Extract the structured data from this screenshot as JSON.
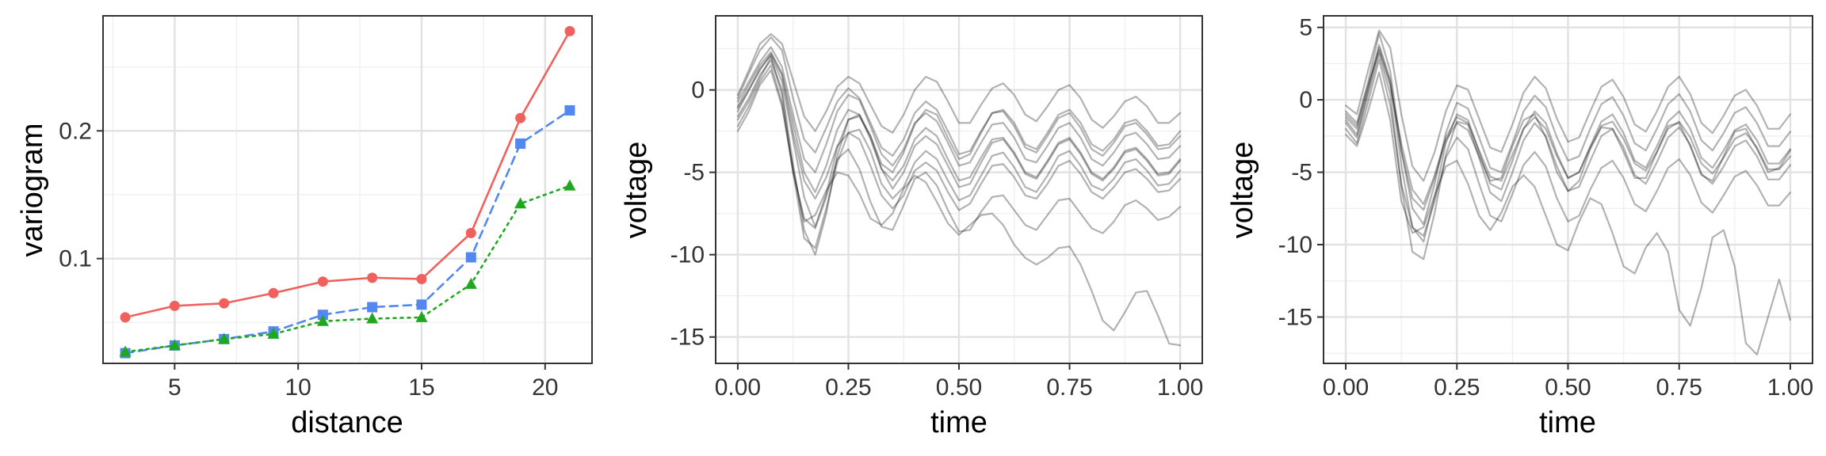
{
  "chart_data": [
    {
      "type": "line",
      "xlabel": "distance",
      "ylabel": "variogram",
      "xlim": [
        2.1,
        21.9
      ],
      "ylim": [
        0.018,
        0.29
      ],
      "xticks": [
        5,
        10,
        15,
        20
      ],
      "yticks": [
        0.1,
        0.2
      ],
      "ytick_labels": [
        "0.1",
        "0.2"
      ],
      "grid": true,
      "x": [
        3,
        5,
        7,
        9,
        11,
        13,
        15,
        17,
        19,
        21
      ],
      "series": [
        {
          "color": "#f0615d",
          "marker": "circle",
          "dash": "solid",
          "values": [
            0.054,
            0.063,
            0.065,
            0.073,
            0.082,
            0.085,
            0.084,
            0.12,
            0.21,
            0.278
          ]
        },
        {
          "color": "#5388f0",
          "marker": "square",
          "dash": "dashed",
          "values": [
            0.026,
            0.032,
            0.037,
            0.043,
            0.056,
            0.062,
            0.064,
            0.101,
            0.19,
            0.216
          ]
        },
        {
          "color": "#1fa81f",
          "marker": "triangle",
          "dash": "dotted",
          "values": [
            0.027,
            0.032,
            0.037,
            0.041,
            0.051,
            0.053,
            0.054,
            0.08,
            0.143,
            0.157
          ]
        }
      ]
    },
    {
      "type": "line",
      "xlabel": "time",
      "ylabel": "voltage",
      "xlim": [
        -0.05,
        1.05
      ],
      "ylim": [
        -16.6,
        4.5
      ],
      "xticks": [
        0,
        0.25,
        0.5,
        0.75,
        1
      ],
      "xtick_labels": [
        "0.00",
        "0.25",
        "0.50",
        "0.75",
        "1.00"
      ],
      "yticks": [
        0,
        -5,
        -10,
        -15
      ],
      "ytick_labels": [
        "0",
        "-5",
        "-10",
        "-15"
      ],
      "grid": true,
      "line_color": "#000000",
      "line_opacity": 0.3,
      "x": [
        0,
        0.025,
        0.05,
        0.075,
        0.1,
        0.125,
        0.15,
        0.175,
        0.2,
        0.225,
        0.25,
        0.275,
        0.3,
        0.325,
        0.35,
        0.375,
        0.4,
        0.425,
        0.45,
        0.475,
        0.5,
        0.525,
        0.55,
        0.575,
        0.6,
        0.625,
        0.65,
        0.675,
        0.7,
        0.725,
        0.75,
        0.775,
        0.8,
        0.825,
        0.85,
        0.875,
        0.9,
        0.925,
        0.95,
        0.975,
        1
      ],
      "series": [
        {
          "values": [
            -0.7,
            0.5,
            1.7,
            2.6,
            1.4,
            -1.5,
            -4.2,
            -5.0,
            -3.3,
            -1.3,
            -0.3,
            -0.6,
            -2.2,
            -3.9,
            -4.6,
            -3.6,
            -2.0,
            -1.4,
            -1.9,
            -3.2,
            -4.6,
            -4.4,
            -3.2,
            -2.1,
            -2.0,
            -2.9,
            -4.2,
            -4.4,
            -3.4,
            -2.3,
            -2.0,
            -2.9,
            -4.2,
            -4.6,
            -3.8,
            -2.8,
            -2.6,
            -3.3,
            -4.2,
            -4.1,
            -3.4
          ]
        },
        {
          "values": [
            -1.0,
            0.3,
            1.5,
            2.3,
            1.0,
            -2.0,
            -5.0,
            -6.2,
            -4.6,
            -2.4,
            -1.2,
            -1.5,
            -3.0,
            -4.8,
            -5.5,
            -4.6,
            -3.0,
            -2.3,
            -2.8,
            -4.2,
            -5.5,
            -5.3,
            -4.1,
            -3.0,
            -2.9,
            -3.8,
            -5.0,
            -5.3,
            -4.3,
            -3.2,
            -2.9,
            -3.8,
            -5.0,
            -5.4,
            -4.7,
            -3.7,
            -3.5,
            -4.2,
            -5.1,
            -5.0,
            -4.2
          ]
        },
        {
          "values": [
            -1.3,
            0.0,
            1.3,
            2.1,
            0.5,
            -3.0,
            -6.5,
            -8.3,
            -6.3,
            -3.5,
            -1.8,
            -1.6,
            -2.8,
            -4.5,
            -5.0,
            -3.8,
            -2.1,
            -1.2,
            -1.5,
            -2.9,
            -4.2,
            -3.9,
            -2.6,
            -1.4,
            -1.2,
            -2.0,
            -3.3,
            -3.6,
            -2.6,
            -1.5,
            -1.2,
            -2.0,
            -3.3,
            -3.7,
            -3.0,
            -2.0,
            -1.8,
            -2.5,
            -3.4,
            -3.3,
            -2.5
          ]
        },
        {
          "values": [
            -1.6,
            -0.5,
            0.9,
            1.8,
            0.0,
            -4.5,
            -8.5,
            -10.0,
            -7.5,
            -4.0,
            -1.8,
            -1.5,
            -2.8,
            -4.8,
            -6.0,
            -5.0,
            -3.4,
            -2.8,
            -3.3,
            -4.6,
            -5.9,
            -5.7,
            -4.4,
            -3.2,
            -3.0,
            -3.9,
            -5.1,
            -5.4,
            -4.4,
            -3.3,
            -3.0,
            -3.9,
            -5.1,
            -5.5,
            -4.8,
            -3.8,
            -3.6,
            -4.3,
            -5.2,
            -5.1,
            -4.3
          ]
        },
        {
          "values": [
            -1.8,
            -0.7,
            0.7,
            2.0,
            -0.3,
            -5.0,
            -9.0,
            -9.6,
            -7.2,
            -4.4,
            -2.6,
            -2.4,
            -3.7,
            -5.7,
            -6.6,
            -5.9,
            -4.4,
            -3.7,
            -4.2,
            -5.5,
            -6.7,
            -6.4,
            -5.2,
            -4.0,
            -3.8,
            -4.7,
            -5.9,
            -6.2,
            -5.2,
            -4.0,
            -3.7,
            -4.6,
            -5.8,
            -6.1,
            -5.4,
            -4.4,
            -4.2,
            -4.9,
            -5.8,
            -5.7,
            -4.9
          ]
        },
        {
          "values": [
            -0.5,
            1.0,
            2.4,
            3.2,
            2.4,
            -0.5,
            -3.0,
            -3.8,
            -2.3,
            -0.7,
            0.1,
            -0.5,
            -2.0,
            -3.5,
            -4.0,
            -3.0,
            -1.4,
            -0.7,
            -1.2,
            -2.5,
            -3.9,
            -3.7,
            -2.5,
            -1.4,
            -1.3,
            -2.2,
            -3.5,
            -3.8,
            -2.8,
            -1.7,
            -1.4,
            -2.3,
            -3.6,
            -4.0,
            -3.2,
            -2.2,
            -2.0,
            -2.7,
            -3.6,
            -3.5,
            -2.8
          ]
        },
        {
          "values": [
            -0.3,
            1.2,
            2.8,
            3.4,
            2.8,
            0.6,
            -1.6,
            -2.5,
            -1.3,
            0.2,
            0.8,
            0.4,
            -0.9,
            -2.2,
            -2.6,
            -1.5,
            0.0,
            0.8,
            0.5,
            -0.7,
            -2.0,
            -2.0,
            -0.9,
            0.1,
            0.4,
            -0.3,
            -1.5,
            -1.9,
            -1.0,
            0.0,
            0.3,
            -0.5,
            -1.8,
            -2.3,
            -1.6,
            -0.7,
            -0.4,
            -1.0,
            -2.0,
            -2.0,
            -1.4
          ]
        },
        {
          "values": [
            -1.1,
            0.0,
            1.2,
            2.2,
            0.9,
            -2.6,
            -5.5,
            -6.6,
            -5.3,
            -3.4,
            -2.6,
            -3.0,
            -4.6,
            -6.4,
            -7.2,
            -6.4,
            -4.9,
            -4.4,
            -4.9,
            -6.2,
            -7.3,
            -6.9,
            -5.7,
            -4.6,
            -4.5,
            -5.3,
            -6.4,
            -6.6,
            -5.7,
            -4.6,
            -4.3,
            -5.1,
            -6.2,
            -6.6,
            -5.9,
            -5.0,
            -4.8,
            -5.4,
            -6.2,
            -6.1,
            -5.4
          ]
        },
        {
          "values": [
            -2.2,
            -1.0,
            0.5,
            1.5,
            -0.8,
            -5.0,
            -7.8,
            -8.4,
            -6.5,
            -4.2,
            -3.6,
            -4.8,
            -6.8,
            -8.3,
            -8.5,
            -7.0,
            -5.4,
            -5.0,
            -5.8,
            -7.3,
            -8.6,
            -8.5,
            -7.4,
            -6.5,
            -6.4,
            -7.3,
            -8.2,
            -8.5,
            -7.6,
            -6.7,
            -6.6,
            -7.5,
            -8.4,
            -8.7,
            -8.0,
            -7.0,
            -6.7,
            -7.2,
            -7.9,
            -7.7,
            -7.1
          ]
        },
        {
          "values": [
            -2.5,
            -1.3,
            0.3,
            1.2,
            -1.0,
            -4.8,
            -8.0,
            -7.6,
            -6.1,
            -5.0,
            -5.2,
            -6.3,
            -7.8,
            -8.2,
            -7.5,
            -6.0,
            -5.2,
            -5.6,
            -6.8,
            -8.1,
            -8.8,
            -8.2,
            -7.6,
            -7.5,
            -8.2,
            -9.4,
            -10.2,
            -10.6,
            -10.2,
            -9.6,
            -9.5,
            -10.6,
            -12.2,
            -14.0,
            -14.6,
            -13.5,
            -12.3,
            -12.2,
            -13.7,
            -15.4,
            -15.5
          ]
        }
      ]
    },
    {
      "type": "line",
      "xlabel": "time",
      "ylabel": "voltage",
      "xlim": [
        -0.05,
        1.05
      ],
      "ylim": [
        -18.2,
        5.8
      ],
      "xticks": [
        0,
        0.25,
        0.5,
        0.75,
        1
      ],
      "xtick_labels": [
        "0.00",
        "0.25",
        "0.50",
        "0.75",
        "1.00"
      ],
      "yticks": [
        5,
        0,
        -5,
        -10,
        -15
      ],
      "ytick_labels": [
        "5",
        "0",
        "-5",
        "-10",
        "-15"
      ],
      "grid": true,
      "line_color": "#000000",
      "line_opacity": 0.3,
      "x": [
        0,
        0.025,
        0.05,
        0.075,
        0.1,
        0.125,
        0.15,
        0.175,
        0.2,
        0.225,
        0.25,
        0.275,
        0.3,
        0.325,
        0.35,
        0.375,
        0.4,
        0.425,
        0.45,
        0.475,
        0.5,
        0.525,
        0.55,
        0.575,
        0.6,
        0.625,
        0.65,
        0.675,
        0.7,
        0.725,
        0.75,
        0.775,
        0.8,
        0.825,
        0.85,
        0.875,
        0.9,
        0.925,
        0.95,
        0.975,
        1
      ],
      "series": [
        {
          "values": [
            -0.8,
            -1.6,
            1.2,
            4.6,
            2.0,
            -3.5,
            -7.5,
            -8.6,
            -5.8,
            -2.3,
            -0.2,
            -0.6,
            -2.6,
            -4.7,
            -5.0,
            -3.0,
            -0.8,
            0.3,
            -0.5,
            -2.6,
            -4.2,
            -3.9,
            -2.0,
            -0.3,
            0.2,
            -1.1,
            -3.0,
            -3.5,
            -2.0,
            -0.3,
            0.4,
            -0.8,
            -2.8,
            -3.5,
            -2.3,
            -0.9,
            -0.5,
            -1.6,
            -3.2,
            -3.2,
            -2.2
          ]
        },
        {
          "values": [
            -1.2,
            -2.0,
            0.8,
            3.8,
            1.4,
            -4.5,
            -8.8,
            -9.8,
            -6.7,
            -3.0,
            -1.0,
            -1.4,
            -3.6,
            -5.8,
            -6.2,
            -4.2,
            -2.0,
            -0.8,
            -1.6,
            -3.7,
            -5.4,
            -5.0,
            -3.2,
            -1.5,
            -1.0,
            -2.3,
            -4.2,
            -4.7,
            -3.2,
            -1.5,
            -0.8,
            -2.0,
            -4.0,
            -4.7,
            -3.5,
            -2.1,
            -1.7,
            -2.8,
            -4.4,
            -4.4,
            -3.4
          ]
        },
        {
          "values": [
            -1.6,
            -2.6,
            0.3,
            3.2,
            0.4,
            -6.0,
            -10.5,
            -11.0,
            -7.8,
            -3.8,
            -1.5,
            -1.7,
            -4.0,
            -6.4,
            -7.0,
            -5.0,
            -2.8,
            -1.6,
            -2.5,
            -4.6,
            -6.3,
            -6.0,
            -4.2,
            -2.5,
            -2.0,
            -3.3,
            -5.2,
            -5.8,
            -4.3,
            -2.6,
            -1.9,
            -3.1,
            -5.1,
            -5.8,
            -4.6,
            -3.2,
            -2.8,
            -3.9,
            -5.5,
            -5.5,
            -4.5
          ]
        },
        {
          "values": [
            -0.4,
            -1.0,
            2.0,
            4.8,
            3.6,
            -1.0,
            -4.6,
            -5.6,
            -3.6,
            -0.8,
            1.0,
            0.7,
            -1.3,
            -3.3,
            -3.6,
            -1.7,
            0.5,
            1.6,
            0.8,
            -1.3,
            -2.9,
            -2.6,
            -0.8,
            0.9,
            1.4,
            0.2,
            -1.7,
            -2.2,
            -0.8,
            0.9,
            1.6,
            0.4,
            -1.6,
            -2.3,
            -1.1,
            0.3,
            0.7,
            -0.4,
            -2.0,
            -2.0,
            -1.0
          ]
        },
        {
          "values": [
            -1.0,
            -1.8,
            1.0,
            3.4,
            1.0,
            -3.0,
            -6.2,
            -7.2,
            -5.2,
            -2.6,
            -1.2,
            -1.6,
            -3.5,
            -5.3,
            -5.6,
            -3.8,
            -2.0,
            -1.2,
            -2.0,
            -3.9,
            -5.4,
            -5.0,
            -3.3,
            -1.8,
            -1.5,
            -2.7,
            -4.4,
            -4.9,
            -3.6,
            -2.0,
            -1.5,
            -2.6,
            -4.4,
            -5.1,
            -4.0,
            -2.7,
            -2.3,
            -3.3,
            -4.8,
            -4.8,
            -3.9
          ]
        },
        {
          "values": [
            -2.0,
            -3.0,
            -0.2,
            2.8,
            -0.4,
            -5.8,
            -8.8,
            -9.4,
            -7.0,
            -4.0,
            -2.6,
            -3.4,
            -5.8,
            -8.0,
            -8.4,
            -6.5,
            -4.5,
            -3.6,
            -4.6,
            -6.8,
            -8.4,
            -8.0,
            -6.2,
            -4.7,
            -4.2,
            -5.4,
            -7.2,
            -7.7,
            -6.3,
            -4.7,
            -4.1,
            -5.2,
            -7.1,
            -7.8,
            -6.6,
            -5.3,
            -4.9,
            -5.9,
            -7.3,
            -7.3,
            -6.4
          ]
        },
        {
          "values": [
            -1.4,
            -2.4,
            0.6,
            3.6,
            1.2,
            -3.5,
            -6.8,
            -7.6,
            -5.4,
            -2.8,
            -1.6,
            -2.1,
            -3.9,
            -5.6,
            -5.4,
            -3.2,
            -1.4,
            -1.0,
            -2.6,
            -5.0,
            -6.3,
            -5.6,
            -3.4,
            -1.9,
            -2.0,
            -3.6,
            -5.4,
            -5.4,
            -3.6,
            -1.8,
            -1.6,
            -3.2,
            -5.2,
            -5.6,
            -3.9,
            -2.2,
            -2.0,
            -3.4,
            -5.0,
            -4.7,
            -3.5
          ]
        },
        {
          "values": [
            -2.4,
            -3.2,
            -0.8,
            1.9,
            -1.4,
            -7.0,
            -9.2,
            -8.8,
            -6.6,
            -4.6,
            -4.2,
            -5.8,
            -8.0,
            -9.0,
            -7.8,
            -6.0,
            -5.2,
            -6.0,
            -8.0,
            -10.0,
            -10.4,
            -8.4,
            -6.8,
            -7.2,
            -9.2,
            -11.5,
            -12.0,
            -10.2,
            -9.2,
            -10.5,
            -14.5,
            -15.6,
            -13.0,
            -9.5,
            -9.0,
            -11.5,
            -16.8,
            -17.6,
            -15.0,
            -12.4,
            -15.2
          ]
        }
      ]
    }
  ]
}
